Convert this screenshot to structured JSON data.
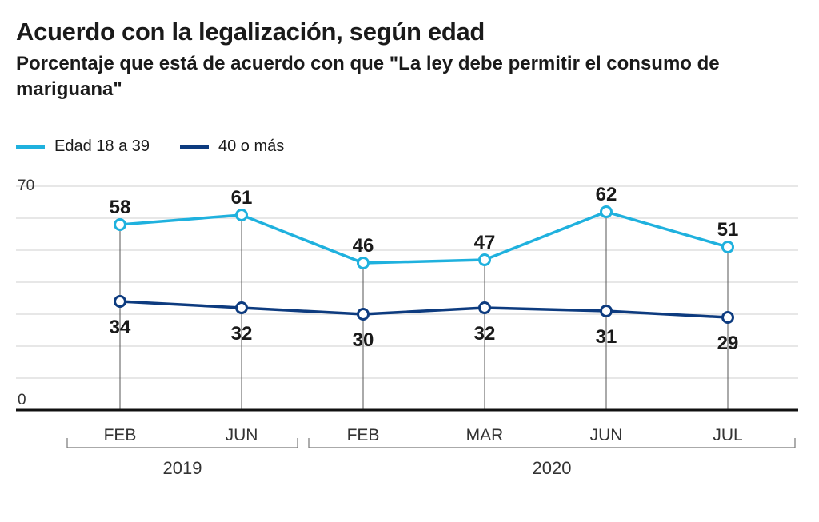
{
  "header": {
    "title": "Acuerdo con la legalización, según edad",
    "subtitle": "Porcentaje que está de acuerdo con que \"La ley debe permitir el consumo de mariguana\""
  },
  "chart_data": {
    "type": "line",
    "title": "Acuerdo con la legalización, según edad",
    "subtitle": "Porcentaje que está de acuerdo con que \"La ley debe permitir el consumo de mariguana\"",
    "categories": [
      "FEB",
      "JUN",
      "FEB",
      "MAR",
      "JUN",
      "JUL"
    ],
    "groups": [
      {
        "label": "2019",
        "categories": [
          "FEB",
          "JUN"
        ]
      },
      {
        "label": "2020",
        "categories": [
          "FEB",
          "MAR",
          "JUN",
          "JUL"
        ]
      }
    ],
    "series": [
      {
        "name": "Edad 18 a 39",
        "color": "#1fb1de",
        "values": [
          58,
          61,
          46,
          47,
          62,
          51
        ]
      },
      {
        "name": "40 o más",
        "color": "#0d3b7f",
        "values": [
          34,
          32,
          30,
          32,
          31,
          29
        ]
      }
    ],
    "ylim": [
      0,
      70
    ],
    "ytick_labels": [
      "70",
      "0"
    ],
    "grid": true,
    "legend": "top-left"
  }
}
